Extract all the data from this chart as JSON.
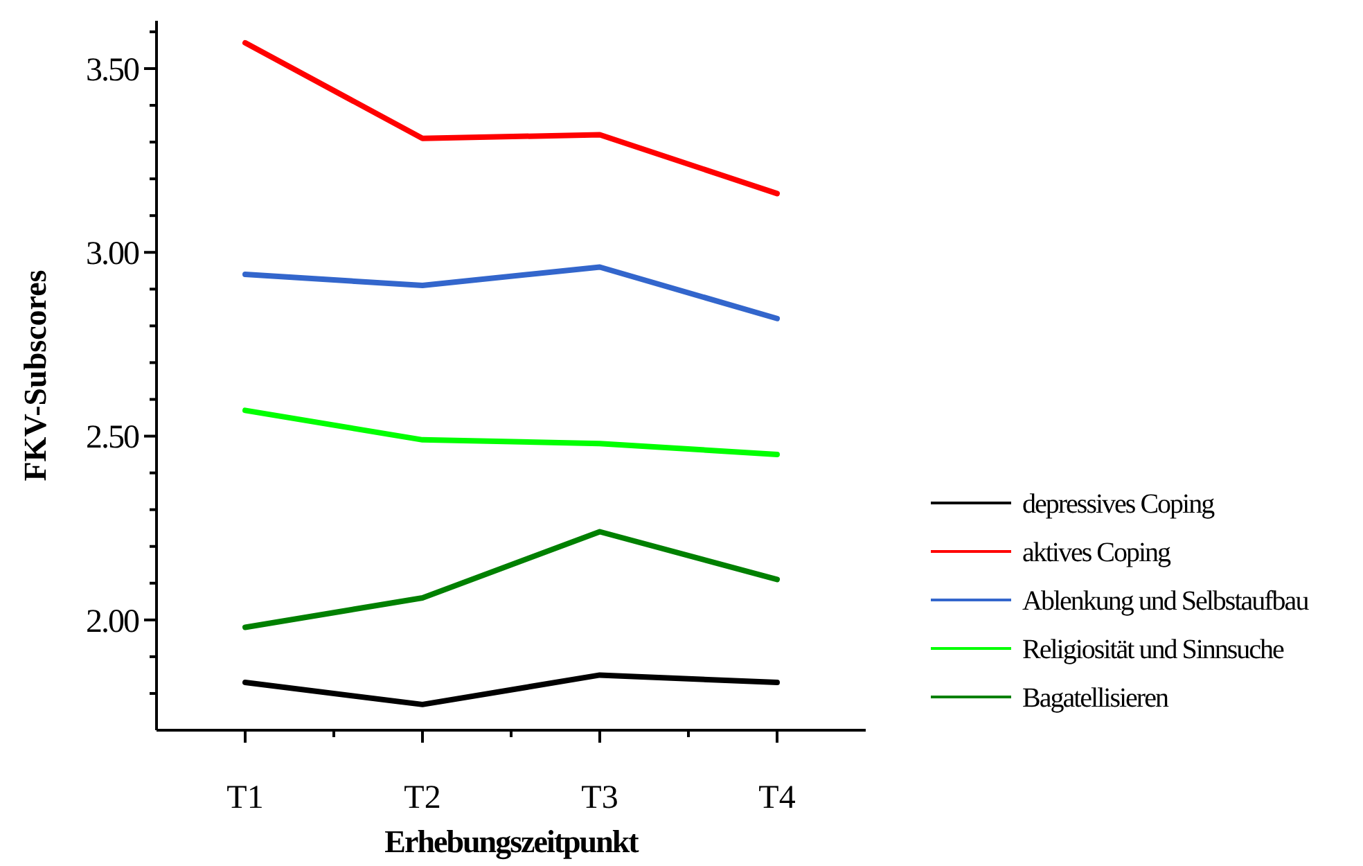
{
  "chart_data": {
    "type": "line",
    "xlabel": "Erhebungszeitpunkt",
    "ylabel": "FKV-Subscores",
    "categories": [
      "T1",
      "T2",
      "T3",
      "T4"
    ],
    "series": [
      {
        "name": "depressives Coping",
        "color": "#000000",
        "values": [
          1.83,
          1.77,
          1.85,
          1.83
        ]
      },
      {
        "name": "aktives Coping",
        "color": "#ff0000",
        "values": [
          3.57,
          3.31,
          3.32,
          3.16
        ]
      },
      {
        "name": "Ablenkung und Selbstaufbau",
        "color": "#3366cc",
        "values": [
          2.94,
          2.91,
          2.96,
          2.82
        ]
      },
      {
        "name": "Religiosität und Sinnsuche",
        "color": "#00ff00",
        "values": [
          2.57,
          2.49,
          2.48,
          2.45
        ]
      },
      {
        "name": "Bagatellisieren",
        "color": "#008000",
        "values": [
          1.98,
          2.06,
          2.24,
          2.11
        ]
      }
    ],
    "ylim": [
      1.7,
      3.63
    ],
    "yticks": [
      {
        "value": 1.8,
        "label": null
      },
      {
        "value": 1.9,
        "label": null
      },
      {
        "value": 2,
        "label": "2.00"
      },
      {
        "value": 2.1,
        "label": null
      },
      {
        "value": 2.2,
        "label": null
      },
      {
        "value": 2.3,
        "label": null
      },
      {
        "value": 2.4,
        "label": null
      },
      {
        "value": 2.5,
        "label": "2.50"
      },
      {
        "value": 2.6,
        "label": null
      },
      {
        "value": 2.7,
        "label": null
      },
      {
        "value": 2.8,
        "label": null
      },
      {
        "value": 2.9,
        "label": null
      },
      {
        "value": 3,
        "label": "3.00"
      },
      {
        "value": 3.1,
        "label": null
      },
      {
        "value": 3.2,
        "label": null
      },
      {
        "value": 3.3,
        "label": null
      },
      {
        "value": 3.4,
        "label": null
      },
      {
        "value": 3.5,
        "label": "3.50"
      },
      {
        "value": 3.6,
        "label": null
      }
    ],
    "grid": false,
    "legend": "right",
    "line_style": "solid"
  }
}
